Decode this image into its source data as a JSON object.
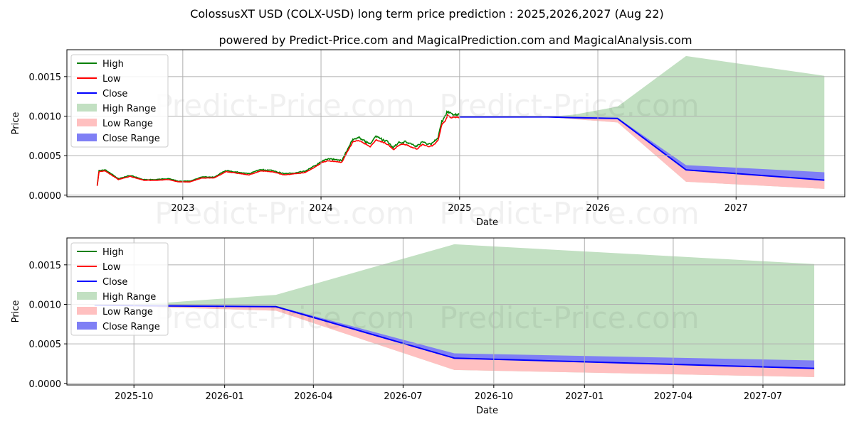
{
  "title": "ColossusXT USD (COLX-USD) long term price prediction : 2025,2026,2027 (Aug 22)",
  "subtitle": "powered by Predict-Price.com and MagicalPrediction.com and MagicalAnalysis.com",
  "watermark": "Predict-Price.com",
  "colors": {
    "high": "#008000",
    "low": "#ff0000",
    "close": "#0000ff",
    "high_range": "#c2e0c2",
    "low_range": "#ffc0c0",
    "close_range": "#7f7ff5",
    "grid": "#b0b0b0"
  },
  "legend": [
    "High",
    "Low",
    "Close",
    "High Range",
    "Low Range",
    "Close Range"
  ],
  "chart_data": [
    {
      "type": "line",
      "xlabel": "Date",
      "ylabel": "Price",
      "xlim": [
        "2022-03-01",
        "2027-10-15"
      ],
      "ylim": [
        -2e-05,
        0.00184
      ],
      "x_ticks": [
        "2023-01-01",
        "2024-01-01",
        "2025-01-01",
        "2026-01-01",
        "2027-01-01"
      ],
      "x_tick_labels": [
        "2023",
        "2024",
        "2025",
        "2026",
        "2027"
      ],
      "y_ticks": [
        0,
        0.0005,
        0.001,
        0.0015
      ],
      "y_tick_labels": [
        "0.0000",
        "0.0005",
        "0.0010",
        "0.0015"
      ],
      "grid": true,
      "legend_position": "top-left",
      "history": {
        "x": [
          "2022-05-20",
          "2022-05-25",
          "2022-06-10",
          "2022-07-15",
          "2022-08-15",
          "2022-09-20",
          "2022-10-20",
          "2022-11-25",
          "2022-12-20",
          "2023-01-20",
          "2023-02-20",
          "2023-03-25",
          "2023-04-25",
          "2023-05-25",
          "2023-06-25",
          "2023-07-25",
          "2023-08-25",
          "2023-09-25",
          "2023-10-20",
          "2023-11-20",
          "2023-12-20",
          "2024-01-05",
          "2024-01-20",
          "2024-02-10",
          "2024-02-25",
          "2024-03-10",
          "2024-03-25",
          "2024-04-10",
          "2024-04-25",
          "2024-05-10",
          "2024-05-25",
          "2024-06-10",
          "2024-06-25",
          "2024-07-10",
          "2024-07-25",
          "2024-08-10",
          "2024-08-25",
          "2024-09-10",
          "2024-09-25",
          "2024-10-10",
          "2024-10-20",
          "2024-10-28",
          "2024-11-05",
          "2024-11-15",
          "2024-11-25",
          "2024-11-30",
          "2024-12-10",
          "2024-12-20",
          "2024-12-31"
        ],
        "close": [
          0.00012,
          0.0003,
          0.00031,
          0.0002,
          0.00024,
          0.00019,
          0.00019,
          0.0002,
          0.00017,
          0.00017,
          0.00022,
          0.00022,
          0.0003,
          0.00028,
          0.00026,
          0.00031,
          0.0003,
          0.00026,
          0.00027,
          0.00029,
          0.00037,
          0.00042,
          0.00044,
          0.00043,
          0.00042,
          0.00055,
          0.00068,
          0.0007,
          0.00066,
          0.00062,
          0.00071,
          0.00068,
          0.00065,
          0.00058,
          0.00064,
          0.00065,
          0.00062,
          0.00059,
          0.00065,
          0.00062,
          0.00063,
          0.00066,
          0.0007,
          0.0009,
          0.00096,
          0.00102,
          0.00099,
          0.00099,
          0.00099
        ]
      },
      "forecast": {
        "x": [
          "2024-12-31",
          "2025-08-22",
          "2025-11-01",
          "2026-02-22",
          "2026-08-22",
          "2027-08-22"
        ],
        "high": [
          0.00099,
          0.00099,
          0.00102,
          0.00112,
          0.00176,
          0.00151
        ],
        "low": [
          0.00099,
          0.00099,
          0.00096,
          0.00092,
          0.00017,
          8e-05
        ],
        "close": [
          0.00099,
          0.00099,
          0.00098,
          0.00097,
          0.00032,
          0.00019
        ],
        "close_upper": [
          0.00099,
          0.00099,
          0.00099,
          0.00098,
          0.00038,
          0.00029
        ]
      }
    },
    {
      "type": "line",
      "xlabel": "Date",
      "ylabel": "Price",
      "xlim": [
        "2025-07-25",
        "2027-09-22"
      ],
      "ylim": [
        -2e-05,
        0.00184
      ],
      "x_ticks": [
        "2025-10-01",
        "2026-01-01",
        "2026-04-01",
        "2026-07-01",
        "2026-10-01",
        "2027-01-01",
        "2027-04-01",
        "2027-07-01"
      ],
      "x_tick_labels": [
        "2025-10",
        "2026-01",
        "2026-04",
        "2026-07",
        "2026-10",
        "2027-01",
        "2027-04",
        "2027-07"
      ],
      "y_ticks": [
        0,
        0.0005,
        0.001,
        0.0015
      ],
      "y_tick_labels": [
        "0.0000",
        "0.0005",
        "0.0010",
        "0.0015"
      ],
      "grid": true,
      "legend_position": "top-left",
      "forecast": {
        "x": [
          "2025-08-22",
          "2025-11-01",
          "2026-02-22",
          "2026-08-22",
          "2027-08-22"
        ],
        "high": [
          0.00099,
          0.00102,
          0.00112,
          0.00176,
          0.00151
        ],
        "low": [
          0.00099,
          0.00096,
          0.00092,
          0.00017,
          8e-05
        ],
        "close": [
          0.00099,
          0.00098,
          0.00097,
          0.00032,
          0.00019
        ],
        "close_upper": [
          0.00099,
          0.00099,
          0.00098,
          0.00038,
          0.00029
        ]
      }
    }
  ]
}
